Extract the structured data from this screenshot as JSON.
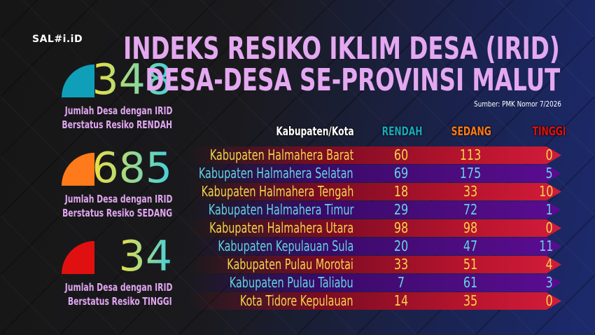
{
  "logo": "SAL#i.iD",
  "title": {
    "line1": "INDEKS RESIKO IKLIM DESA (IRID)",
    "line2": "DESA-DESA SE-PROVINSI MALUT"
  },
  "source": "Sumber: PMK Nomor 7/2026",
  "stats": [
    {
      "value": "348",
      "line1": "Jumlah Desa dengan IRID",
      "line2": "Berstatus Resiko RENDAH",
      "color": "#0f9fb8"
    },
    {
      "value": "685",
      "line1": "Jumlah Desa dengan IRID",
      "line2": "Berstatus Resiko SEDANG",
      "color": "#ff7a1a"
    },
    {
      "value": "34",
      "line1": "Jumlah Desa dengan IRID",
      "line2": "Berstatus Resiko TINGGI",
      "color": "#e01010"
    }
  ],
  "table": {
    "headers": [
      "Kabupaten/Kota",
      "RENDAH",
      "SEDANG",
      "TINGGI"
    ],
    "header_colors": [
      "#ffffff",
      "#1aa8c0",
      "#ff7a1a",
      "#e01010"
    ],
    "rows": [
      [
        "Kabupaten Halmahera Barat",
        "60",
        "113",
        "0"
      ],
      [
        "Kabupaten Halmahera Selatan",
        "69",
        "175",
        "5"
      ],
      [
        "Kabupaten Halmahera Tengah",
        "18",
        "33",
        "10"
      ],
      [
        "Kabupaten Halmahera Timur",
        "29",
        "72",
        "1"
      ],
      [
        "Kabupaten Halmahera Utara",
        "98",
        "98",
        "0"
      ],
      [
        "Kabupaten Kepulauan Sula",
        "20",
        "47",
        "11"
      ],
      [
        "Kabupaten Pulau Morotai",
        "33",
        "51",
        "4"
      ],
      [
        "Kabupaten Pulau Taliabu",
        "7",
        "61",
        "3"
      ],
      [
        "Kota Tidore Kepulauan",
        "14",
        "35",
        "0"
      ]
    ]
  }
}
